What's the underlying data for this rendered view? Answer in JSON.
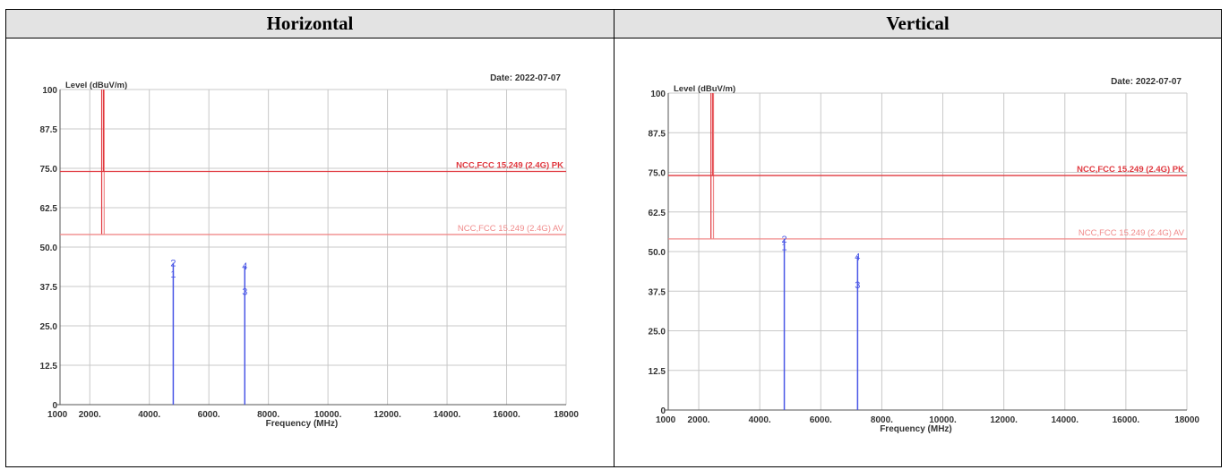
{
  "headers": {
    "left": "Horizontal",
    "right": "Vertical"
  },
  "limit_colors": {
    "pk": "#e0383f",
    "av": "#f08a8a"
  },
  "marker_color": "#4a57e6",
  "chart_data": [
    {
      "type": "line",
      "panel": "Horizontal",
      "date": "Date: 2022-07-07",
      "ylabel": "Level (dBuV/m)",
      "xlabel": "Frequency (MHz)",
      "xlim": [
        1000,
        18000
      ],
      "ylim": [
        0,
        100
      ],
      "yticks": [
        "0",
        "12.5",
        "25.0",
        "37.5",
        "50.0",
        "62.5",
        "75.0",
        "87.5",
        "100"
      ],
      "xticks": [
        {
          "v": 1000,
          "label": "1000"
        },
        {
          "v": 2000,
          "label": "2000."
        },
        {
          "v": 4000,
          "label": "4000."
        },
        {
          "v": 6000,
          "label": "6000."
        },
        {
          "v": 8000,
          "label": "8000."
        },
        {
          "v": 10000,
          "label": "10000."
        },
        {
          "v": 12000,
          "label": "12000."
        },
        {
          "v": 14000,
          "label": "14000."
        },
        {
          "v": 16000,
          "label": "16000."
        },
        {
          "v": 18000,
          "label": "18000"
        }
      ],
      "limits": [
        {
          "label": "NCC,FCC 15.249 (2.4G) PK",
          "value": 74,
          "kind": "pk"
        },
        {
          "label": "NCC,FCC 15.249 (2.4G) AV",
          "value": 54,
          "kind": "av"
        }
      ],
      "band_edges": [
        2400,
        2483.5
      ],
      "markers": [
        {
          "label": "1",
          "freq": 4804,
          "level": 41.5
        },
        {
          "label": "2",
          "freq": 4804,
          "level": 45.0
        },
        {
          "label": "3",
          "freq": 7206,
          "level": 36.0
        },
        {
          "label": "4",
          "freq": 7206,
          "level": 44.0
        }
      ]
    },
    {
      "type": "line",
      "panel": "Vertical",
      "date": "Date: 2022-07-07",
      "ylabel": "Level (dBuV/m)",
      "xlabel": "Frequency (MHz)",
      "xlim": [
        1000,
        18000
      ],
      "ylim": [
        0,
        100
      ],
      "yticks": [
        "0",
        "12.5",
        "25.0",
        "37.5",
        "50.0",
        "62.5",
        "75.0",
        "87.5",
        "100"
      ],
      "xticks": [
        {
          "v": 1000,
          "label": "1000"
        },
        {
          "v": 2000,
          "label": "2000."
        },
        {
          "v": 4000,
          "label": "4000."
        },
        {
          "v": 6000,
          "label": "6000."
        },
        {
          "v": 8000,
          "label": "8000."
        },
        {
          "v": 10000,
          "label": "10000."
        },
        {
          "v": 12000,
          "label": "12000."
        },
        {
          "v": 14000,
          "label": "14000."
        },
        {
          "v": 16000,
          "label": "16000."
        },
        {
          "v": 18000,
          "label": "18000"
        }
      ],
      "limits": [
        {
          "label": "NCC,FCC 15.249 (2.4G) PK",
          "value": 74,
          "kind": "pk"
        },
        {
          "label": "NCC,FCC 15.249 (2.4G) AV",
          "value": 54,
          "kind": "av"
        }
      ],
      "band_edges": [
        2400,
        2483.5
      ],
      "markers": [
        {
          "label": "1",
          "freq": 4804,
          "level": 51.5
        },
        {
          "label": "2",
          "freq": 4804,
          "level": 54.0
        },
        {
          "label": "3",
          "freq": 7206,
          "level": 39.5
        },
        {
          "label": "4",
          "freq": 7206,
          "level": 48.5
        }
      ]
    }
  ]
}
